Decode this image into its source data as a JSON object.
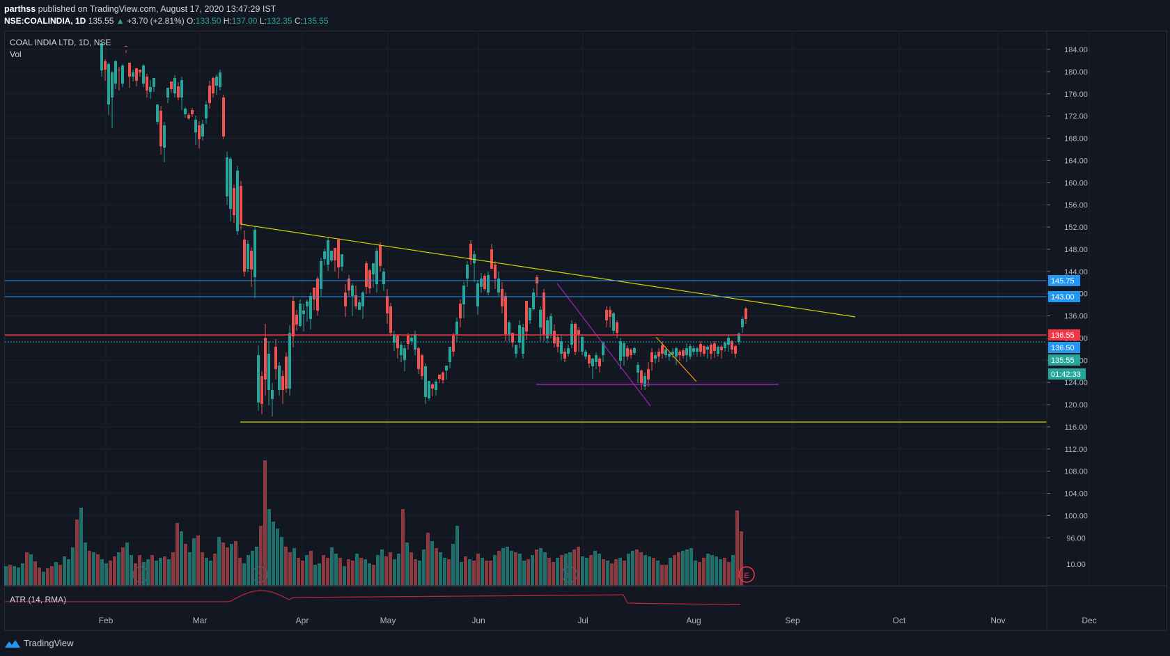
{
  "header": {
    "author": "parthss",
    "published_text": "published on TradingView.com, August 17, 2020 13:47:29 IST",
    "symbol": "NSE:COALINDIA, 1D",
    "last": "135.55",
    "change_arrow": "▲",
    "change": "+3.70 (+2.81%)",
    "o_label": "O:",
    "o": "133.50",
    "h_label": "H:",
    "h": "137.00",
    "l_label": "L:",
    "l": "132.35",
    "c_label": "C:",
    "c": "135.55"
  },
  "legend": {
    "title": "COAL INDIA LTD, 1D, NSE",
    "vol": "Vol",
    "atr": "ATR (14, RMA)"
  },
  "price_axis": {
    "ticks": [
      "184.00",
      "180.00",
      "176.00",
      "172.00",
      "168.00",
      "164.00",
      "160.00",
      "156.00",
      "152.00",
      "148.00",
      "144.00",
      "140.00",
      "136.00",
      "132.00",
      "128.00",
      "124.00",
      "120.00",
      "116.00",
      "112.00",
      "108.00",
      "104.00",
      "100.00",
      "96.00"
    ],
    "atr_tick": "10.00",
    "labels": [
      {
        "text": "145.75",
        "color": "#2196f3"
      },
      {
        "text": "143.00",
        "color": "#2196f3"
      },
      {
        "text": "136.55",
        "color": "#f23645"
      },
      {
        "text": "136.50",
        "color": "#2196f3"
      },
      {
        "text": "135.55",
        "color": "#26a69a"
      },
      {
        "text": "01:42:33",
        "color": "#26a69a"
      }
    ]
  },
  "time_axis": [
    "Feb",
    "Mar",
    "Apr",
    "May",
    "Jun",
    "Jul",
    "Aug",
    "Sep",
    "Oct",
    "Nov",
    "Dec"
  ],
  "event_markers": [
    "E",
    "D",
    "E",
    "E"
  ],
  "footer": {
    "brand": "TradingView"
  },
  "colors": {
    "up": "#26a69a",
    "down": "#ef5350",
    "vol_up": "#1f6f6a",
    "vol_down": "#8b3a3f",
    "trend": "#d6d400",
    "support": "#9c27b0",
    "hline_blue": "#2196f3",
    "hline_red": "#f23645",
    "atr_line": "#b2263a"
  }
}
